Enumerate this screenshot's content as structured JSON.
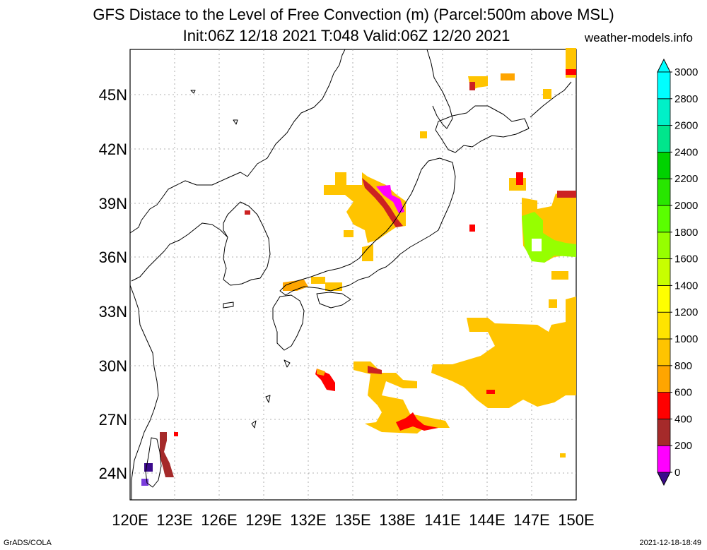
{
  "header": {
    "title_line_1": "GFS Distace to the Level of Free Convection (m) (Parcel:500m above MSL)",
    "title_line_2": "Init:06Z 12/18 2021 T:048 Valid:06Z 12/20 2021",
    "credit": "weather-models.info"
  },
  "footer": {
    "left": "GrADS/COLA",
    "right": "2021-12-18-18:49"
  },
  "map": {
    "lon_labels": [
      "120E",
      "123E",
      "126E",
      "129E",
      "132E",
      "135E",
      "138E",
      "141E",
      "144E",
      "147E",
      "150E"
    ],
    "lat_labels": [
      "45N",
      "42N",
      "39N",
      "36N",
      "33N",
      "30N",
      "27N",
      "24N"
    ],
    "lon_range": [
      120,
      150
    ],
    "lat_range": [
      22.5,
      47.5
    ],
    "grid": true
  },
  "colorbar": {
    "labels": [
      "0",
      "200",
      "400",
      "600",
      "800",
      "1000",
      "1200",
      "1400",
      "1600",
      "1800",
      "2000",
      "2200",
      "2400",
      "2600",
      "2800",
      "3000"
    ],
    "colors": [
      "#3c0a8c",
      "#ff00ff",
      "#a52a2a",
      "#ff0000",
      "#ffa500",
      "#ffc400",
      "#ffe400",
      "#ffff00",
      "#c8ff00",
      "#96ff00",
      "#5aff00",
      "#28e600",
      "#00d200",
      "#00e68c",
      "#00f0c8",
      "#00ffff"
    ]
  }
}
